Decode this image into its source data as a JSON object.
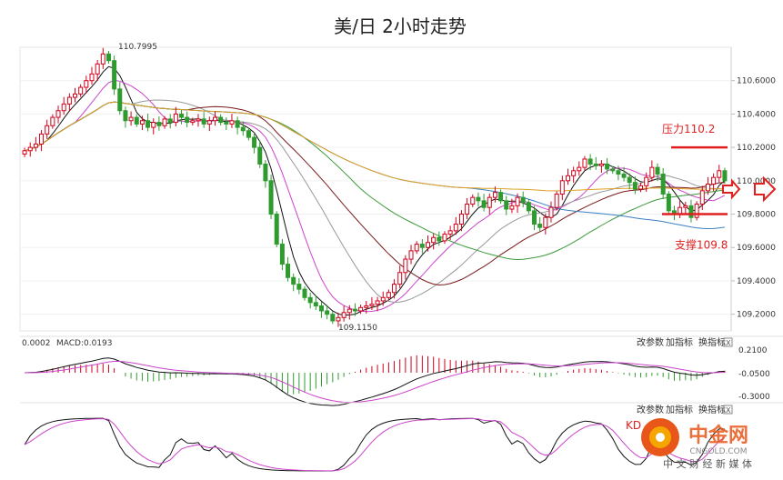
{
  "title": "美/日 2小时走势",
  "chart_data": {
    "type": "line",
    "subtype": "candlestick",
    "title": "美/日 2小时走势",
    "y_ticks": [
      "110.6000",
      "110.4000",
      "110.2000",
      "110.0000",
      "109.8000",
      "109.6000",
      "109.4000",
      "109.2000"
    ],
    "ylim": [
      109.1,
      110.8
    ],
    "price_high_label": "110.7995",
    "price_low_label": "109.1150",
    "resistance": {
      "label": "压力110.2",
      "value": 110.2
    },
    "support": {
      "label": "支撑109.8",
      "value": 109.8
    },
    "close": [
      110.18,
      110.2,
      110.22,
      110.28,
      110.33,
      110.38,
      110.42,
      110.46,
      110.5,
      110.52,
      110.56,
      110.6,
      110.64,
      110.7,
      110.76,
      110.72,
      110.55,
      110.42,
      110.36,
      110.38,
      110.34,
      110.36,
      110.32,
      110.35,
      110.33,
      110.37,
      110.35,
      110.4,
      110.38,
      110.35,
      110.36,
      110.37,
      110.34,
      110.36,
      110.38,
      110.35,
      110.34,
      110.36,
      110.32,
      110.3,
      110.26,
      110.2,
      110.1,
      110.0,
      109.8,
      109.62,
      109.5,
      109.42,
      109.38,
      109.35,
      109.3,
      109.27,
      109.25,
      109.22,
      109.2,
      109.16,
      109.18,
      109.21,
      109.23,
      109.22,
      109.24,
      109.25,
      109.26,
      109.28,
      109.3,
      109.33,
      109.38,
      109.45,
      109.53,
      109.58,
      109.62,
      109.6,
      109.63,
      109.66,
      109.64,
      109.68,
      109.7,
      109.74,
      109.8,
      109.86,
      109.9,
      109.88,
      109.84,
      109.9,
      109.93,
      109.88,
      109.83,
      109.85,
      109.9,
      109.87,
      109.82,
      109.74,
      109.72,
      109.78,
      109.84,
      109.92,
      110.0,
      110.03,
      110.06,
      110.08,
      110.13,
      110.1,
      110.09,
      110.1,
      110.07,
      110.06,
      110.04,
      110.02,
      109.99,
      109.95,
      109.97,
      110.02,
      110.08,
      110.04,
      109.92,
      109.82,
      109.8,
      109.84,
      109.85,
      109.78,
      109.86,
      109.94,
      109.98,
      110.02,
      110.06,
      110.0
    ],
    "macd_label": "MACD:0.0193",
    "macd_prefix": "0.0002",
    "macd_ticks": [
      "0.2100",
      "-0.0500",
      "-0.3000"
    ],
    "buttons": [
      "改参数",
      "加指标",
      "换指标"
    ],
    "close_symbol": "X",
    "kdj_label": "KD",
    "watermark": {
      "name": "中金网",
      "site": "CNGOLD.COM",
      "slogan": "中 文 财 经 新 媒 体"
    },
    "colors": {
      "up": "#d0021b",
      "down": "#2e9b2e",
      "resistance": "#e02020",
      "support": "#e02020",
      "ma_pink": "#cc44cc",
      "ma_black": "#111111",
      "ma_gray": "#999999",
      "ma_green": "#3a9a3a",
      "ma_darkred": "#7a1a1a",
      "ma_blue": "#3a7fc0",
      "ma_orange": "#e0a020"
    }
  }
}
